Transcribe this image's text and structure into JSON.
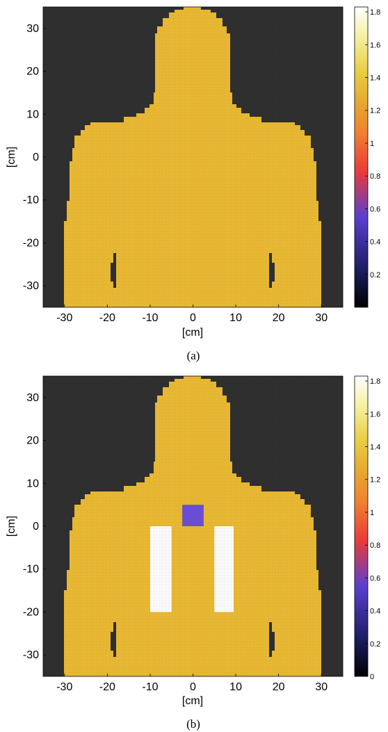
{
  "figure_a": {
    "caption": "(a)"
  },
  "figure_b": {
    "caption": "(b)"
  },
  "chart_data": [
    {
      "type": "heatmap",
      "panel": "a",
      "xlabel": "[cm]",
      "ylabel": "[cm]",
      "xlim": [
        -35,
        35
      ],
      "ylim": [
        -35,
        35
      ],
      "xticks": [
        -30,
        -20,
        -10,
        0,
        10,
        20,
        30
      ],
      "yticks": [
        30,
        20,
        10,
        0,
        -10,
        -20,
        -30
      ],
      "grid": true,
      "background_value": 0,
      "regions": [
        {
          "label": "body",
          "value": 1.4
        }
      ],
      "colorbar": {
        "range": [
          0,
          1.83
        ],
        "ticks": [
          0.2,
          0.4,
          0.6,
          0.8,
          1,
          1.2,
          1.4,
          1.6,
          1.8
        ],
        "colormap": [
          "#000000",
          "#1a1d5e",
          "#5a3fd0",
          "#e83a3a",
          "#f08030",
          "#e6a830",
          "#e8cc40",
          "#f5f0a0",
          "#ffffff"
        ]
      },
      "colors": {
        "background": "#2f2f2f",
        "body": "#e8b833"
      }
    },
    {
      "type": "heatmap",
      "panel": "b",
      "xlabel": "[cm]",
      "ylabel": "[cm]",
      "xlim": [
        -35,
        35
      ],
      "ylim": [
        -35,
        35
      ],
      "xticks": [
        -30,
        -20,
        -10,
        0,
        10,
        20,
        30
      ],
      "yticks": [
        30,
        20,
        10,
        0,
        -10,
        -20,
        -30
      ],
      "grid": true,
      "background_value": 0,
      "regions": [
        {
          "label": "body",
          "value": 1.4
        },
        {
          "label": "square",
          "value": 0.5,
          "x": [
            -2.5,
            2.5
          ],
          "y": [
            0,
            5
          ]
        },
        {
          "label": "left-rect",
          "value": 1.83,
          "x": [
            -10,
            -5
          ],
          "y": [
            -20,
            0
          ]
        },
        {
          "label": "right-rect",
          "value": 1.83,
          "x": [
            5,
            9.5
          ],
          "y": [
            -20,
            0
          ]
        }
      ],
      "colorbar": {
        "range": [
          0,
          1.83
        ],
        "ticks": [
          0,
          0.2,
          0.4,
          0.6,
          0.8,
          1,
          1.2,
          1.4,
          1.6,
          1.8
        ],
        "colormap": [
          "#000000",
          "#1a1d5e",
          "#5a3fd0",
          "#e83a3a",
          "#f08030",
          "#e6a830",
          "#e8cc40",
          "#f5f0a0",
          "#ffffff"
        ]
      },
      "colors": {
        "background": "#2f2f2f",
        "body": "#e8b833",
        "square": "#6a4fd4",
        "rect": "#fafafa"
      }
    }
  ]
}
